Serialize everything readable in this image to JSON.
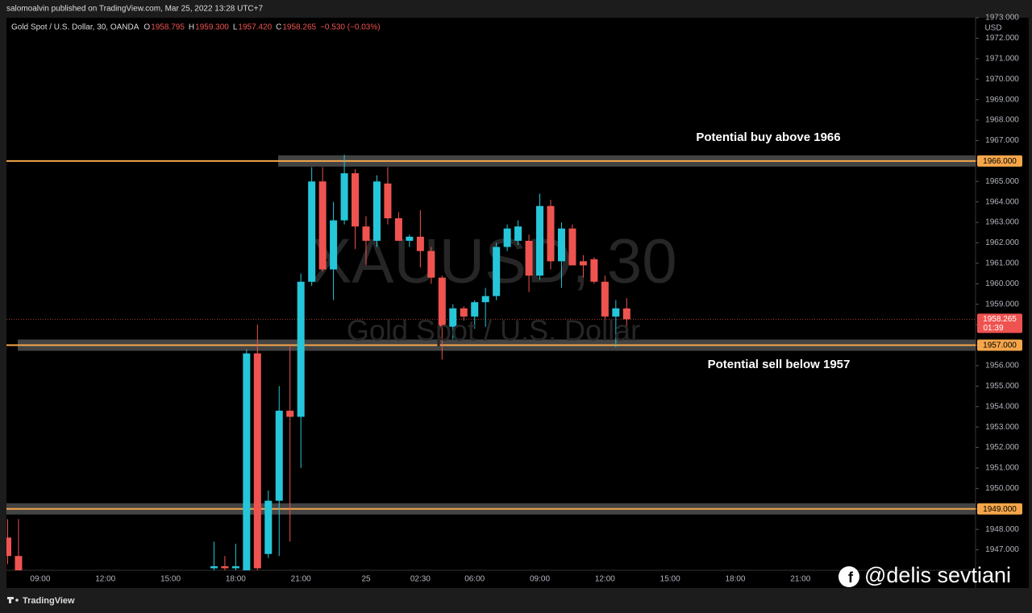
{
  "chart_data": {
    "type": "candlestick",
    "published": "salomoalvin published on TradingView.com, Mar 25, 2022 13:28 UTC+7",
    "legend": {
      "symbol": "Gold Spot / U.S. Dollar, 30, OANDA",
      "items": [
        {
          "k": "O",
          "v": "1958.795"
        },
        {
          "k": "H",
          "v": "1959.300"
        },
        {
          "k": "L",
          "v": "1957.420"
        },
        {
          "k": "C",
          "v": "1958.265"
        }
      ],
      "change": "−0.530 (−0.03%)"
    },
    "watermark": {
      "symbol": "XAUUSD, 30",
      "name": "Gold Spot / U.S. Dollar"
    },
    "currency": "USD",
    "annotations": [
      "Potential buy above 1966",
      "Potential sell below 1957"
    ],
    "brand": "TradingView",
    "credit": "@delis sevtiani",
    "up_color": "#26c6da",
    "down_color": "#ef5350",
    "level_color": "#f5a64a",
    "ylim": [
      1946,
      1973
    ],
    "yticks": [
      {
        "value": 1947,
        "label": "1947.000"
      },
      {
        "value": 1948,
        "label": "1948.000"
      },
      {
        "value": 1949,
        "label": "1949.000"
      },
      {
        "value": 1950,
        "label": "1950.000"
      },
      {
        "value": 1951,
        "label": "1951.000"
      },
      {
        "value": 1952,
        "label": "1952.000"
      },
      {
        "value": 1953,
        "label": "1953.000"
      },
      {
        "value": 1954,
        "label": "1954.000"
      },
      {
        "value": 1955,
        "label": "1955.000"
      },
      {
        "value": 1956,
        "label": "1956.000"
      },
      {
        "value": 1957,
        "label": "1957.000"
      },
      {
        "value": 1958,
        "label": "1958.000"
      },
      {
        "value": 1959,
        "label": "1959.000"
      },
      {
        "value": 1960,
        "label": "1960.000"
      },
      {
        "value": 1961,
        "label": "1961.000"
      },
      {
        "value": 1962,
        "label": "1962.000"
      },
      {
        "value": 1963,
        "label": "1963.000"
      },
      {
        "value": 1964,
        "label": "1964.000"
      },
      {
        "value": 1965,
        "label": "1965.000"
      },
      {
        "value": 1966,
        "label": "1966.000"
      },
      {
        "value": 1967,
        "label": "1967.000"
      },
      {
        "value": 1968,
        "label": "1968.000"
      },
      {
        "value": 1969,
        "label": "1969.000"
      },
      {
        "value": 1970,
        "label": "1970.000"
      },
      {
        "value": 1971,
        "label": "1971.000"
      },
      {
        "value": 1972,
        "label": "1972.000"
      },
      {
        "value": 1973,
        "label": "1973.000"
      }
    ],
    "levels": [
      {
        "value": 1966,
        "label": "1966.000"
      },
      {
        "value": 1957,
        "label": "1957.000"
      },
      {
        "value": 1949,
        "label": "1949.000"
      }
    ],
    "last_price": {
      "value": 1958.265,
      "label": "1958.265",
      "timer": "01:39"
    },
    "categories": [
      null,
      null,
      null,
      "09:00",
      null,
      null,
      null,
      null,
      null,
      "12:00",
      null,
      null,
      null,
      null,
      null,
      "15:00",
      null,
      null,
      null,
      null,
      null,
      "18:00",
      null,
      null,
      null,
      null,
      null,
      "21:00",
      null,
      null,
      null,
      null,
      null,
      "25",
      null,
      null,
      null,
      null,
      "02:30",
      null,
      null,
      null,
      null,
      "06:00",
      null,
      null,
      null,
      null,
      null,
      "09:00",
      null,
      null,
      null,
      null,
      null,
      "12:00",
      null,
      null,
      null,
      null,
      null,
      "15:00",
      null,
      null,
      null,
      null,
      null,
      "18:00",
      null,
      null,
      null,
      null,
      null,
      "21:00",
      null,
      null,
      null,
      null,
      null,
      null,
      null,
      null,
      null,
      null,
      null,
      null,
      null,
      null,
      null
    ],
    "open": [
      1947.6,
      1946.7,
      null,
      null,
      null,
      null,
      null,
      null,
      null,
      null,
      null,
      null,
      null,
      null,
      null,
      null,
      null,
      null,
      null,
      1946.1,
      1946.2,
      1946.1,
      1946.0,
      1956.6,
      1946.8,
      1949.4,
      1953.8,
      1953.5,
      1960.1,
      1965.0,
      1960.7,
      1963.1,
      1965.4,
      1962.8,
      1962.1,
      1964.9,
      1963.2,
      1962.1,
      1962.3,
      1961.6,
      1960.3,
      1957.9,
      1958.8,
      1958.4,
      1959.1,
      1959.4,
      1961.8,
      1962.1,
      1962.1,
      1960.4,
      1963.8,
      1961.1,
      1962.7,
      1961.1,
      1961.2,
      1960.1,
      1958.4,
      1958.795,
      null,
      null,
      null,
      null,
      null,
      null,
      null,
      null,
      null,
      null,
      null,
      null,
      null,
      null,
      null,
      null,
      null,
      null,
      null,
      null,
      null,
      null,
      null,
      null,
      null,
      null,
      null,
      null,
      null,
      null,
      null
    ],
    "high": [
      1948.5,
      1948.5,
      null,
      null,
      null,
      null,
      null,
      null,
      null,
      null,
      null,
      null,
      null,
      null,
      null,
      null,
      null,
      null,
      null,
      1947.4,
      1946.7,
      1947.3,
      1956.8,
      1958.0,
      1949.9,
      1955.0,
      1957.0,
      1960.5,
      1965.7,
      1965.7,
      1964.0,
      1966.3,
      1965.6,
      1963.3,
      1965.3,
      1965.7,
      1963.5,
      1962.4,
      1963.6,
      1961.8,
      1960.4,
      1959.0,
      1958.9,
      1959.2,
      1959.8,
      1962.0,
      1962.9,
      1963.1,
      1962.4,
      1964.4,
      1964.1,
      1963.0,
      1962.9,
      1961.4,
      1961.3,
      1960.4,
      1959.2,
      1959.3,
      null,
      null,
      null,
      null,
      null,
      null,
      null,
      null,
      null,
      null,
      null,
      null,
      null,
      null,
      null,
      null,
      null,
      null,
      null,
      null,
      null,
      null,
      null,
      null,
      null,
      null,
      null,
      null,
      null,
      null,
      null
    ],
    "low": [
      1946.3,
      1946.0,
      null,
      null,
      null,
      null,
      null,
      null,
      null,
      null,
      null,
      null,
      null,
      null,
      null,
      null,
      null,
      null,
      null,
      1946.0,
      1946.0,
      1946.0,
      1946.0,
      1946.0,
      1946.6,
      1946.7,
      1947.4,
      1951.0,
      1959.9,
      1960.6,
      1959.2,
      1962.9,
      1961.7,
      1960.9,
      1961.8,
      1962.9,
      1962.1,
      1961.8,
      1960.8,
      1960.0,
      1956.3,
      1957.3,
      1958.2,
      1957.8,
      1957.9,
      1959.2,
      1961.6,
      1961.9,
      1959.6,
      1960.2,
      1960.7,
      1959.8,
      1960.9,
      1960.3,
      1960.0,
      1957.5,
      1956.9,
      1957.42,
      null,
      null,
      null,
      null,
      null,
      null,
      null,
      null,
      null,
      null,
      null,
      null,
      null,
      null,
      null,
      null,
      null,
      null,
      null,
      null,
      null,
      null,
      null,
      null,
      null,
      null,
      null,
      null,
      null,
      null,
      null
    ],
    "close": [
      1946.7,
      1946.0,
      null,
      null,
      null,
      null,
      null,
      null,
      null,
      null,
      null,
      null,
      null,
      null,
      null,
      null,
      null,
      null,
      null,
      1946.2,
      1946.1,
      1946.2,
      1956.6,
      1946.1,
      1949.4,
      1953.8,
      1953.5,
      1960.1,
      1965.0,
      1960.7,
      1963.1,
      1965.4,
      1962.8,
      1962.1,
      1965.0,
      1963.2,
      1962.1,
      1962.3,
      1961.6,
      1960.3,
      1957.9,
      1958.8,
      1958.4,
      1959.1,
      1959.4,
      1961.8,
      1962.7,
      1962.8,
      1960.4,
      1963.8,
      1961.1,
      1962.7,
      1960.9,
      1960.9,
      1960.1,
      1958.4,
      1958.8,
      1958.265,
      null,
      null,
      null,
      null,
      null,
      null,
      null,
      null,
      null,
      null,
      null,
      null,
      null,
      null,
      null,
      null,
      null,
      null,
      null,
      null,
      null,
      null,
      null,
      null,
      null,
      null,
      null,
      null,
      null,
      null,
      null
    ]
  }
}
